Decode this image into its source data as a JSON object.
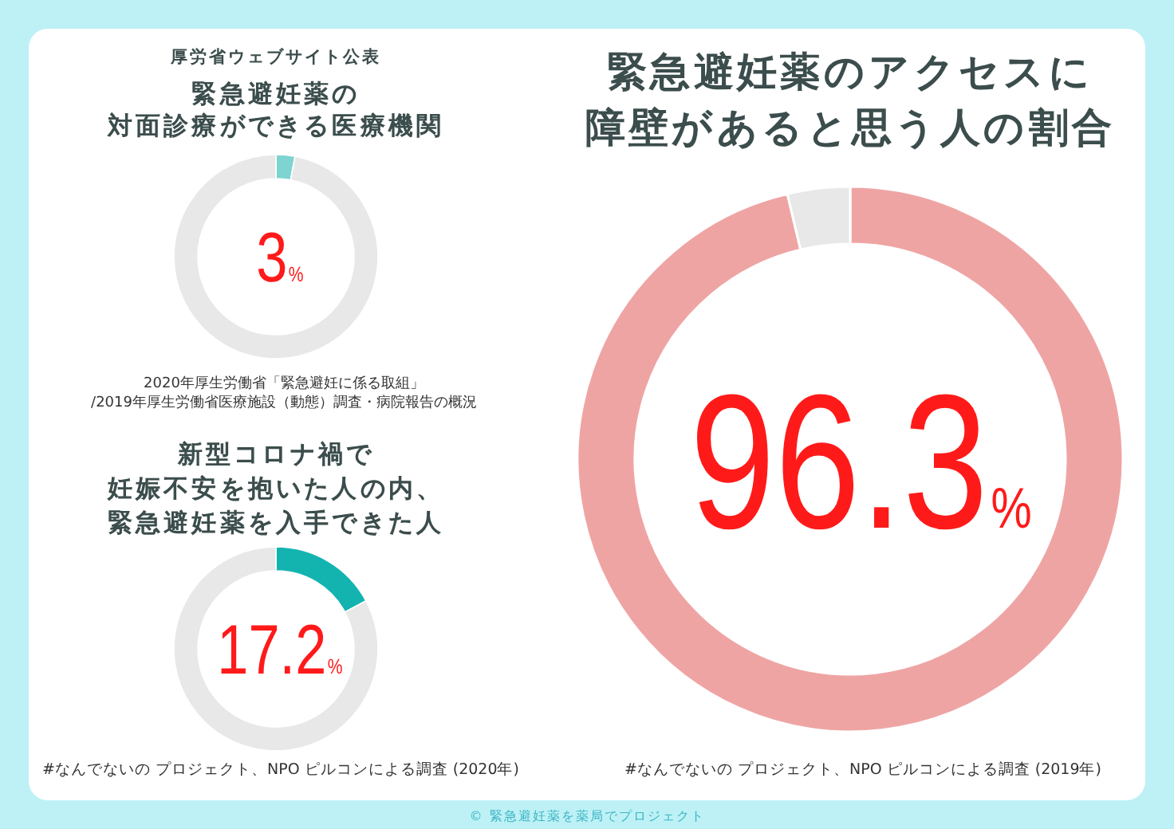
{
  "chart_data": [
    {
      "type": "donut",
      "subtitle": "厚労省ウェブサイト公表",
      "title": "緊急避妊薬の対面診療ができる医療機関",
      "categories": [
        null,
        null
      ],
      "values": [
        3,
        97
      ],
      "colors": [
        "#7dd4d1",
        "#e8e8e8"
      ],
      "annotations": [
        "3%",
        "2020年厚生労働省「緊急避妊に係る取組」",
        "/2019年厚生労働省医療施設（動態）調査・病院報告の概況"
      ]
    },
    {
      "type": "donut",
      "title": "新型コロナ禍で妊娠不安を抱いた人の内、緊急避妊薬を入手できた人",
      "categories": [
        null,
        null
      ],
      "values": [
        17.2,
        82.8
      ],
      "colors": [
        "#13b4b0",
        "#e8e8e8"
      ],
      "annotations": [
        "17.2%",
        "#なんでないの プロジェクト、NPO ピルコンによる調査 (2020年)"
      ]
    },
    {
      "type": "donut",
      "title": "緊急避妊薬のアクセスに障壁があると思う人の割合",
      "categories": [
        null,
        null
      ],
      "values": [
        96.3,
        3.7
      ],
      "colors": [
        "#efa4a4",
        "#e8e8e8"
      ],
      "annotations": [
        "96.3%",
        "#なんでないの プロジェクト、NPO ピルコンによる調査 (2019年)",
        "© 緊急避妊薬を薬局でプロジェクト"
      ]
    }
  ]
}
